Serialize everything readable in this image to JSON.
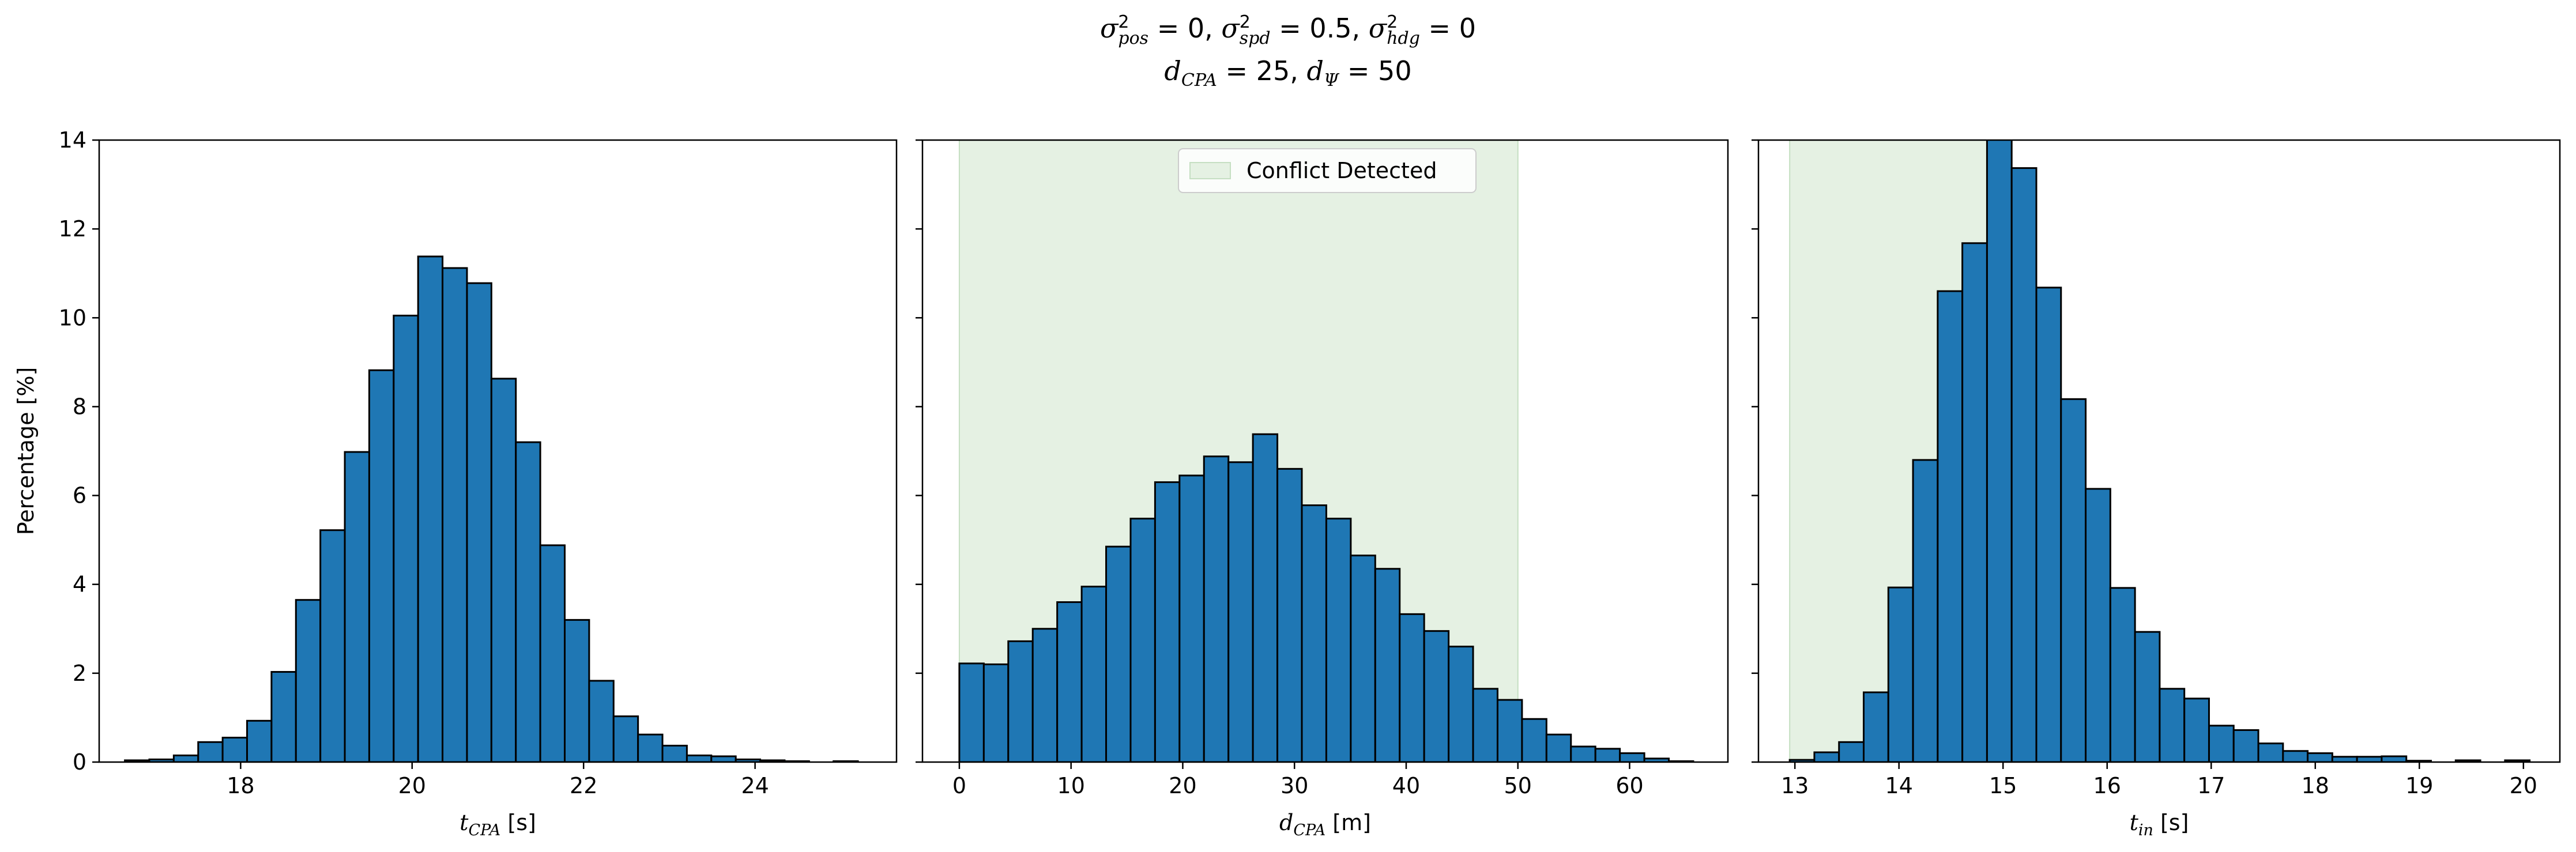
{
  "figure_title": {
    "line1": [
      {
        "sym": "σ",
        "sup": "2",
        "sub": "pos",
        "eq": " = 0, "
      },
      {
        "sym": "σ",
        "sup": "2",
        "sub": "spd",
        "eq": " = 0.5, "
      },
      {
        "sym": "σ",
        "sup": "2",
        "sub": "hdg",
        "eq": " = 0"
      }
    ],
    "line2": [
      {
        "sym": "d",
        "sub": "CPA",
        "eq": " = 25, "
      },
      {
        "sym": "d",
        "sub": "Ψ",
        "eq": " = 50"
      }
    ]
  },
  "colors": {
    "bar_fill": "#1f77b4",
    "bar_edge": "#000000",
    "conflict_fill": "#e5f1e3",
    "conflict_edge": "#c5dfc2"
  },
  "chart_data": [
    {
      "type": "bar",
      "histogram": true,
      "xlabel": {
        "sym": "t",
        "sub": "CPA",
        "unit": " [s]"
      },
      "ylabel": "Percentage [%]",
      "xlim": [
        16.35,
        25.65
      ],
      "ylim": [
        0,
        14
      ],
      "xticks": [
        18,
        20,
        22,
        24
      ],
      "yticks": [
        0,
        2,
        4,
        6,
        8,
        10,
        12,
        14
      ],
      "bin_start": 16.65,
      "bin_width": 0.285,
      "values": [
        0.04,
        0.06,
        0.15,
        0.45,
        0.55,
        0.93,
        2.03,
        3.65,
        5.22,
        6.98,
        8.82,
        10.05,
        11.38,
        11.12,
        10.78,
        8.63,
        7.2,
        4.88,
        3.2,
        1.83,
        1.03,
        0.62,
        0.37,
        0.15,
        0.13,
        0.06,
        0.04,
        0.02,
        0.0,
        0.02
      ]
    },
    {
      "type": "bar",
      "histogram": true,
      "xlabel": {
        "sym": "d",
        "sub": "CPA",
        "unit": " [m]"
      },
      "xlim": [
        -3.3,
        68.8
      ],
      "ylim": [
        0,
        14
      ],
      "xticks": [
        0,
        10,
        20,
        30,
        40,
        50,
        60
      ],
      "yticks": [
        0,
        2,
        4,
        6,
        8,
        10,
        12,
        14
      ],
      "bin_start": 0,
      "bin_width": 2.19,
      "values": [
        2.22,
        2.2,
        2.72,
        3.0,
        3.6,
        3.95,
        4.85,
        5.48,
        6.3,
        6.45,
        6.88,
        6.75,
        7.38,
        6.6,
        5.78,
        5.48,
        4.65,
        4.35,
        3.33,
        2.95,
        2.6,
        1.65,
        1.4,
        0.97,
        0.62,
        0.35,
        0.3,
        0.2,
        0.08,
        0.02
      ],
      "shaded_region": [
        0,
        50
      ],
      "legend": {
        "label": "Conflict Detected",
        "position": "top-center"
      }
    },
    {
      "type": "bar",
      "histogram": true,
      "xlabel": {
        "sym": "t",
        "sub": "in",
        "unit": " [s]"
      },
      "xlim": [
        12.65,
        20.35
      ],
      "ylim": [
        0,
        14
      ],
      "xticks": [
        13,
        14,
        15,
        16,
        17,
        18,
        19,
        20
      ],
      "yticks": [
        0,
        2,
        4,
        6,
        8,
        10,
        12,
        14
      ],
      "bin_start": 12.95,
      "bin_width": 0.237,
      "values": [
        0.05,
        0.22,
        0.45,
        1.57,
        3.93,
        6.8,
        10.6,
        11.68,
        14.02,
        13.37,
        10.68,
        8.17,
        6.15,
        3.92,
        2.93,
        1.65,
        1.43,
        0.82,
        0.72,
        0.42,
        0.25,
        0.2,
        0.12,
        0.12,
        0.13,
        0.03,
        0.0,
        0.04,
        0.0,
        0.04
      ],
      "shaded_region": [
        12.95,
        15.0
      ]
    }
  ]
}
